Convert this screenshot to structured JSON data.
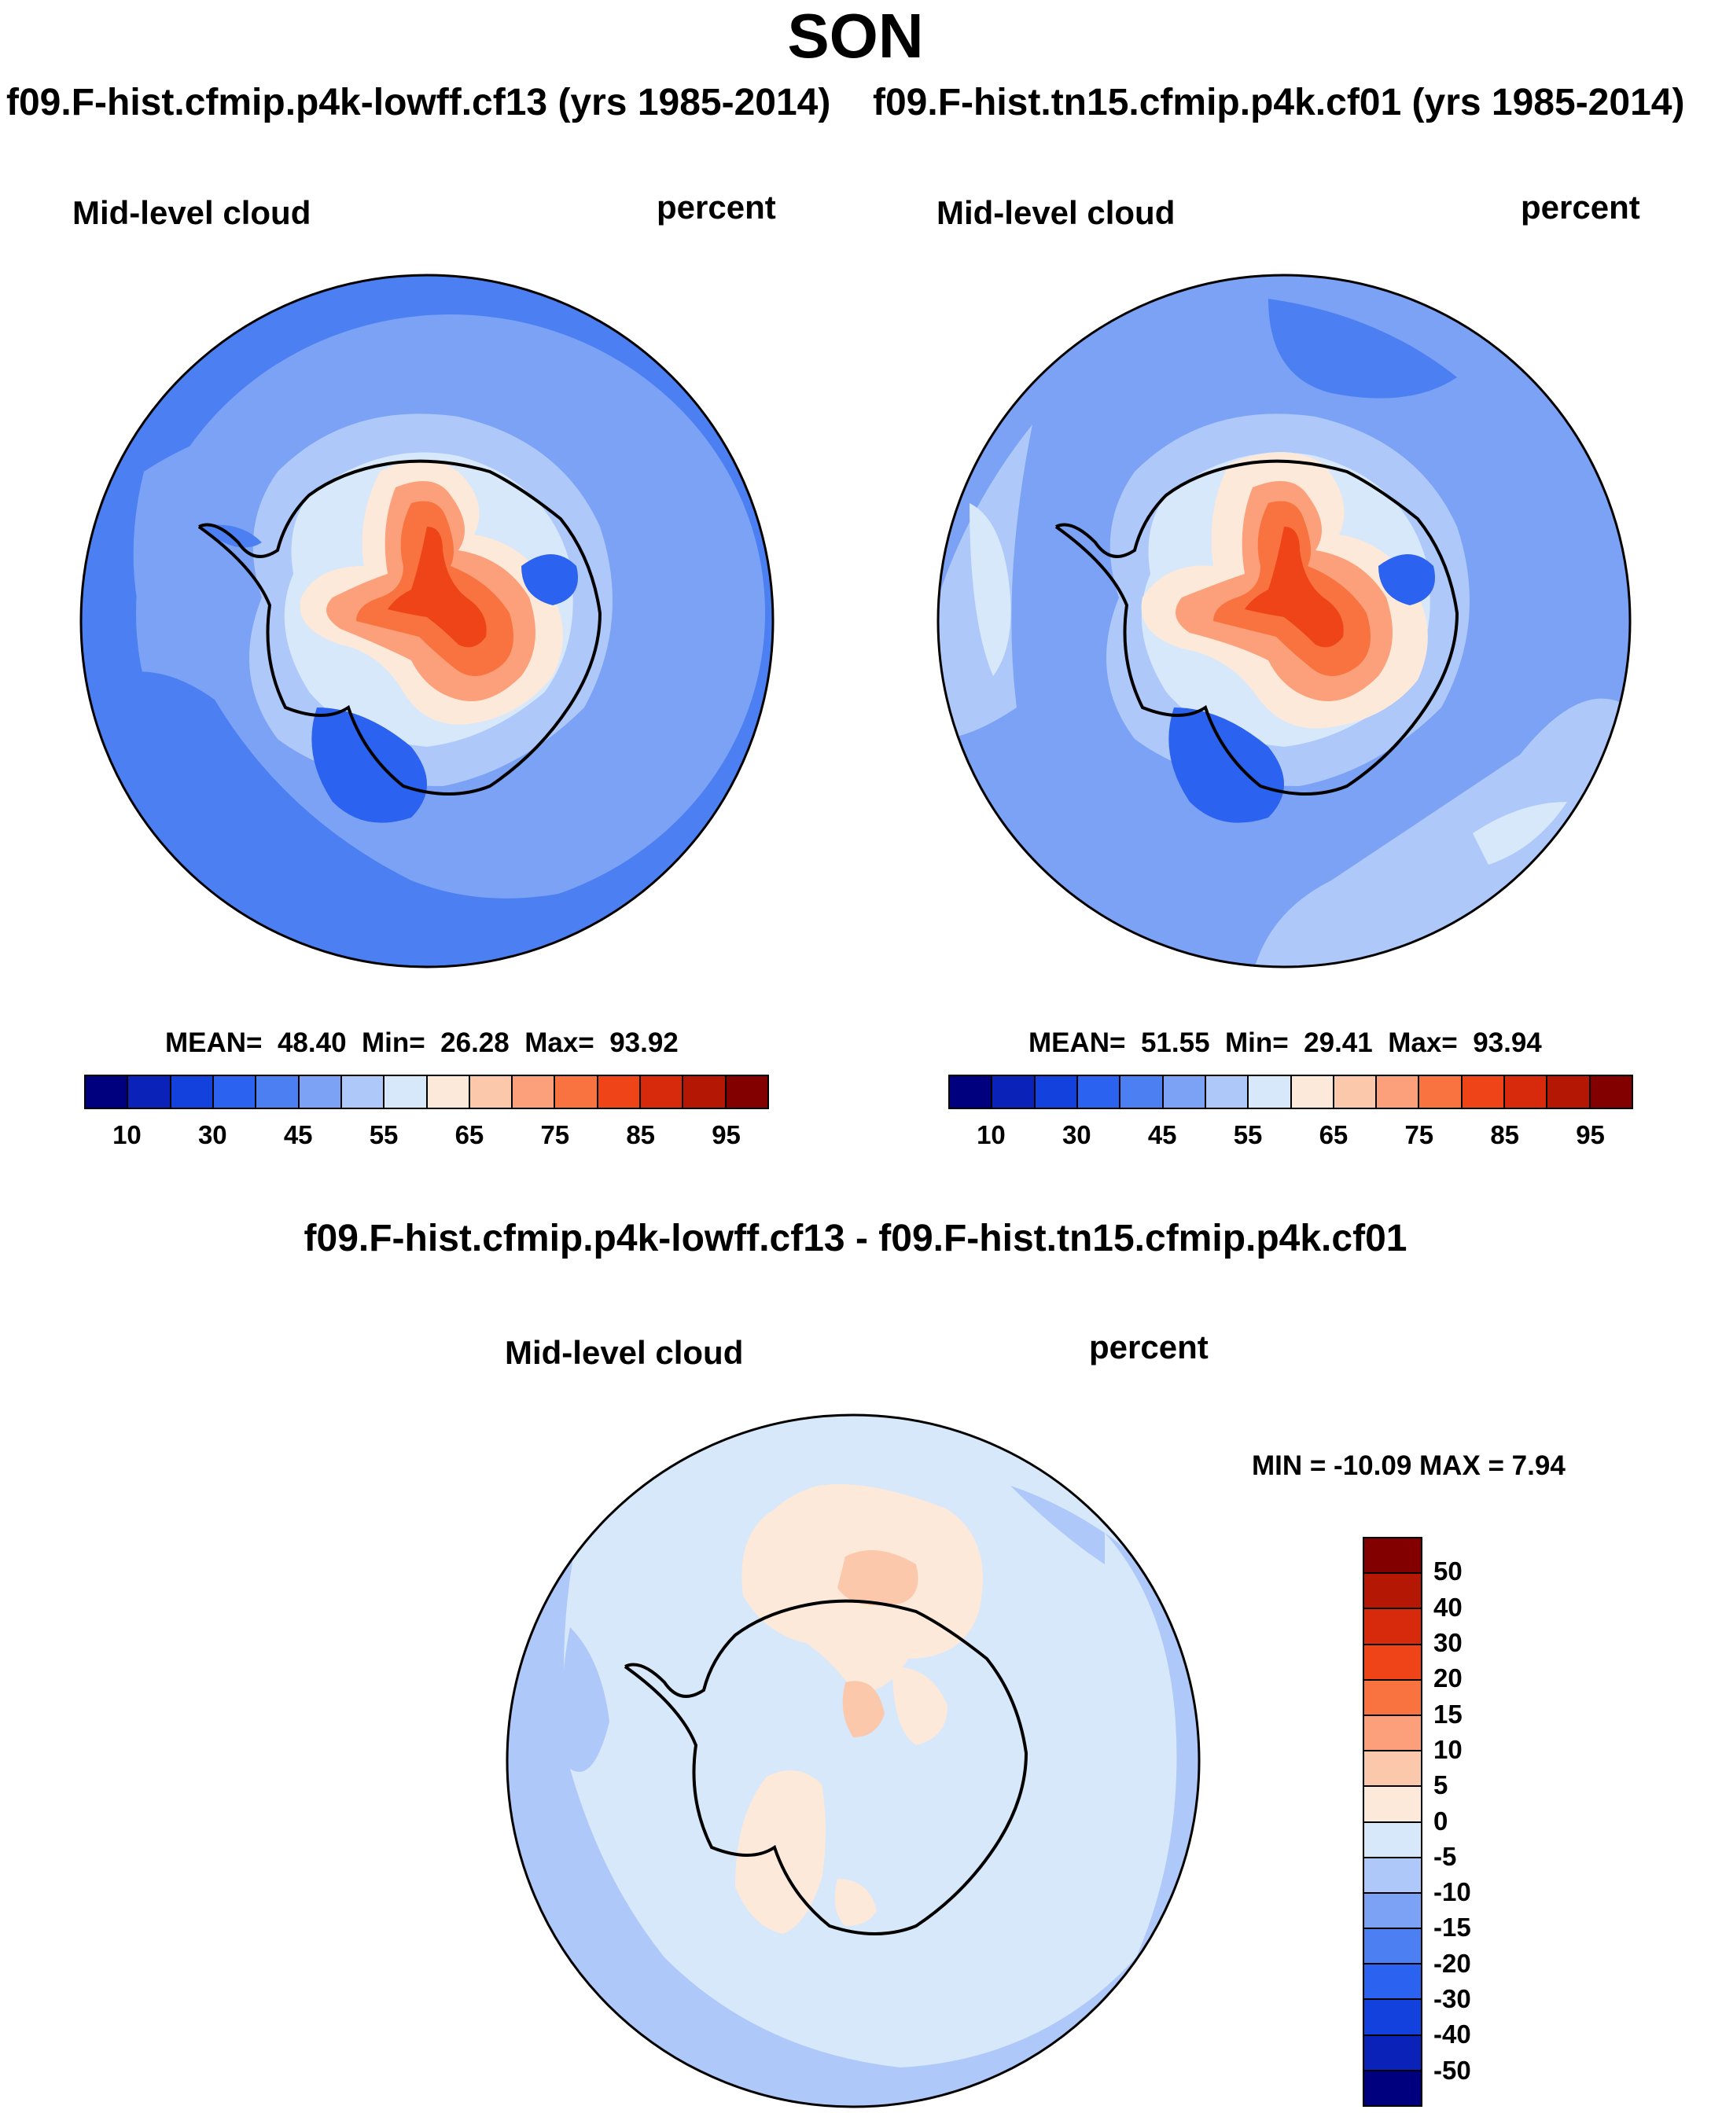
{
  "title": "SON",
  "panels": [
    {
      "case_title": "f09.F-hist.cfmip.p4k-lowff.cf13 (yrs 1985-2014)",
      "field": "Mid-level cloud",
      "units": "percent",
      "stats": {
        "mean_label": "MEAN=",
        "mean": "48.40",
        "min_label": "Min=",
        "min": "26.28",
        "max_label": "Max=",
        "max": "93.92"
      }
    },
    {
      "case_title": "f09.F-hist.tn15.cfmip.p4k.cf01 (yrs 1985-2014)",
      "field": "Mid-level cloud",
      "units": "percent",
      "stats": {
        "mean_label": "MEAN=",
        "mean": "51.55",
        "min_label": "Min=",
        "min": "29.41",
        "max_label": "Max=",
        "max": "93.94"
      }
    }
  ],
  "difference": {
    "title": "f09.F-hist.cfmip.p4k-lowff.cf13 - f09.F-hist.tn15.cfmip.p4k.cf01",
    "field": "Mid-level cloud",
    "units": "percent",
    "minmax": "MIN = -10.09 MAX =   7.94"
  },
  "colorbar_abs": {
    "colors": [
      "#00007f",
      "#0a22b8",
      "#1341dd",
      "#2b62ef",
      "#4c80f2",
      "#7ba2f5",
      "#aec8f9",
      "#d7e8fb",
      "#fde9d9",
      "#fcc8ac",
      "#fba07a",
      "#f8733f",
      "#ee4418",
      "#d7290b",
      "#b51705",
      "#820000"
    ],
    "labels": [
      "10",
      "30",
      "45",
      "55",
      "65",
      "75",
      "85",
      "95"
    ]
  },
  "colorbar_diff": {
    "colors": [
      "#820000",
      "#b51705",
      "#d7290b",
      "#ee4418",
      "#f8733f",
      "#fba07a",
      "#fcc8ac",
      "#fde9d9",
      "#d7e8fb",
      "#aec8f9",
      "#7ba2f5",
      "#4c80f2",
      "#2b62ef",
      "#1341dd",
      "#0a22b8",
      "#00007f"
    ],
    "labels": [
      "50",
      "40",
      "30",
      "20",
      "15",
      "10",
      "5",
      "0",
      "-5",
      "-10",
      "-15",
      "-20",
      "-30",
      "-40",
      "-50"
    ]
  }
}
